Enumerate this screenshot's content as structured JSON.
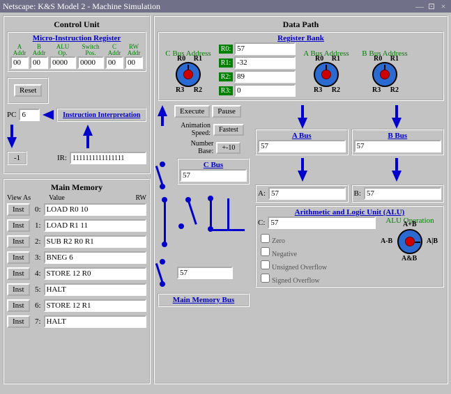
{
  "window": {
    "title": "Netscape: K&S Model 2 - Machine Simulation",
    "min": "—",
    "max": "⊡",
    "close": "×"
  },
  "control_unit": {
    "title": "Control Unit",
    "mir_title": "Micro-Instruction Register",
    "cols": [
      {
        "h": "A Addr",
        "v": "00"
      },
      {
        "h": "B Addr",
        "v": "00"
      },
      {
        "h": "ALU Op.",
        "v": "0000"
      },
      {
        "h": "Switch Pos.",
        "v": "0000"
      },
      {
        "h": "C Addr",
        "v": "00"
      },
      {
        "h": "RW Addr",
        "v": "00"
      }
    ],
    "reset": "Reset",
    "pc_label": "PC",
    "pc": "6",
    "instr_interp": "Instruction Interpretation",
    "minus1": "-1",
    "ir_label": "IR:",
    "ir": "1111111111111111"
  },
  "memory": {
    "title": "Main Memory",
    "view_as": "View As",
    "value_hdr": "Value",
    "rw_hdr": "RW",
    "rows": [
      {
        "i": 0,
        "v": "LOAD R0 10"
      },
      {
        "i": 1,
        "v": "LOAD R1 11"
      },
      {
        "i": 2,
        "v": "SUB R2 R0 R1"
      },
      {
        "i": 3,
        "v": "BNEG 6"
      },
      {
        "i": 4,
        "v": "STORE 12 R0"
      },
      {
        "i": 5,
        "v": "HALT"
      },
      {
        "i": 6,
        "v": "STORE 12 R1"
      },
      {
        "i": 7,
        "v": "HALT"
      }
    ],
    "inst_btn": "Inst"
  },
  "datapath": {
    "title": "Data Path",
    "regbank": {
      "title": "Register Bank",
      "cbus": "C Bus Address",
      "abus": "A Bus Address",
      "bbus": "B Bus Address",
      "r": [
        {
          "l": "R0:",
          "v": "57"
        },
        {
          "l": "R1:",
          "v": "-32"
        },
        {
          "l": "R2:",
          "v": "89"
        },
        {
          "l": "R3:",
          "v": "0"
        }
      ],
      "dl": {
        "tl": "R0",
        "tr": "R1",
        "bl": "R3",
        "br": "R2"
      }
    },
    "exec": "Execute",
    "pause": "Pause",
    "anim_speed_l": "Animation Speed:",
    "anim_speed_v": "Fastest",
    "numbase_l": "Number Base:",
    "numbase_v": "+-10",
    "abus_box": {
      "t": "A Bus",
      "v": "57"
    },
    "bbus_box": {
      "t": "B Bus",
      "v": "57"
    },
    "cbus_box": {
      "t": "C Bus",
      "v": "57"
    },
    "ab": {
      "al": "A:",
      "av": "57",
      "bl": "B:",
      "bv": "57"
    },
    "alu": {
      "title": "Arithmetic and Logic Unit (ALU)",
      "cl": "C:",
      "cv": "57",
      "flags": [
        "Zero",
        "Negative",
        "Unsigned Overflow",
        "Signed Overflow"
      ],
      "op_title": "ALU Operation",
      "ops": {
        "t": "A+B",
        "l": "A-B",
        "r": "A|B",
        "b": "A&B"
      }
    },
    "mmbus": {
      "t": "Main Memory Bus",
      "v": "57"
    }
  },
  "colors": {
    "blue": "#0000cc",
    "green": "#008000",
    "panel": "#c3c3c3"
  }
}
